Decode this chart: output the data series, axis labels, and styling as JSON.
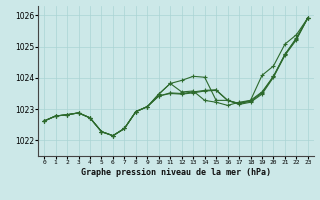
{
  "title": "Graphe pression niveau de la mer (hPa)",
  "x_labels": [
    "0",
    "1",
    "2",
    "3",
    "4",
    "5",
    "6",
    "7",
    "8",
    "9",
    "10",
    "11",
    "12",
    "13",
    "14",
    "15",
    "16",
    "17",
    "18",
    "19",
    "20",
    "21",
    "22",
    "23"
  ],
  "xlim": [
    -0.5,
    23.5
  ],
  "ylim": [
    1021.5,
    1026.3
  ],
  "yticks": [
    1022,
    1023,
    1024,
    1025,
    1026
  ],
  "bg_color": "#cce8e8",
  "grid_color": "#aad4d4",
  "line_color": "#2d6a2d",
  "line1": [
    1022.62,
    1022.78,
    1022.82,
    1022.88,
    1022.72,
    1022.28,
    1022.15,
    1022.38,
    1022.92,
    1023.08,
    1023.48,
    1023.82,
    1023.92,
    1024.05,
    1024.02,
    1023.28,
    1023.28,
    1023.18,
    1023.28,
    1024.08,
    1024.38,
    1025.08,
    1025.38,
    1025.92
  ],
  "line2": [
    1022.62,
    1022.78,
    1022.82,
    1022.88,
    1022.72,
    1022.28,
    1022.15,
    1022.38,
    1022.92,
    1023.08,
    1023.48,
    1023.82,
    1023.55,
    1023.58,
    1023.28,
    1023.22,
    1023.12,
    1023.22,
    1023.28,
    1023.55,
    1024.05,
    1024.75,
    1025.28,
    1025.92
  ],
  "line3": [
    1022.62,
    1022.78,
    1022.82,
    1022.88,
    1022.72,
    1022.28,
    1022.15,
    1022.38,
    1022.92,
    1023.08,
    1023.42,
    1023.52,
    1023.5,
    1023.55,
    1023.6,
    1023.62,
    1023.28,
    1023.18,
    1023.25,
    1023.52,
    1024.05,
    1024.75,
    1025.25,
    1025.92
  ],
  "line4": [
    1022.62,
    1022.78,
    1022.82,
    1022.88,
    1022.72,
    1022.28,
    1022.15,
    1022.38,
    1022.92,
    1023.08,
    1023.42,
    1023.5,
    1023.48,
    1023.52,
    1023.58,
    1023.6,
    1023.28,
    1023.15,
    1023.22,
    1023.48,
    1024.02,
    1024.72,
    1025.22,
    1025.92
  ]
}
